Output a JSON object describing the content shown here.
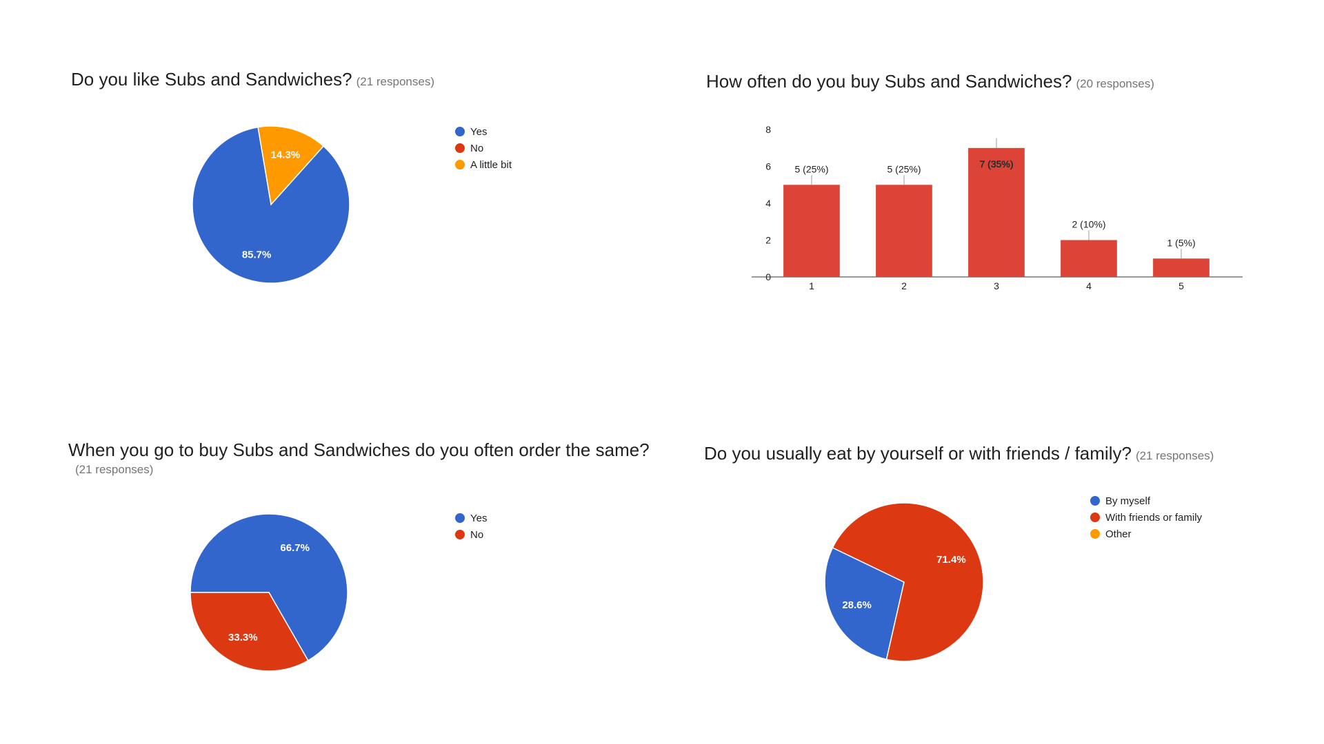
{
  "colors": {
    "blue": "#3366cc",
    "red": "#dc3912",
    "orange": "#ff9900",
    "bar": "#db4437"
  },
  "chart_data": [
    {
      "type": "pie",
      "title": "Do you like Subs and Sandwiches?",
      "responses": "(21 responses)",
      "slices": [
        {
          "label": "Yes",
          "value": 85.7,
          "display": "85.7%",
          "color": "#3366cc"
        },
        {
          "label": "No",
          "value": 0,
          "display": "",
          "color": "#dc3912"
        },
        {
          "label": "A little bit",
          "value": 14.3,
          "display": "14.3%",
          "color": "#ff9900"
        }
      ]
    },
    {
      "type": "bar",
      "title": "How often do you buy Subs and Sandwiches?",
      "responses": "(20 responses)",
      "categories": [
        "1",
        "2",
        "3",
        "4",
        "5"
      ],
      "values": [
        5,
        5,
        7,
        2,
        1
      ],
      "labels": [
        "5 (25%)",
        "5 (25%)",
        "7 (35%)",
        "2 (10%)",
        "1 (5%)"
      ],
      "yticks": [
        0,
        2,
        4,
        6,
        8
      ],
      "ylim": [
        0,
        8
      ],
      "color": "#db4437"
    },
    {
      "type": "pie",
      "title": "When you go to buy Subs and Sandwiches do you often order the same?",
      "responses": "(21 responses)",
      "slices": [
        {
          "label": "Yes",
          "value": 66.7,
          "display": "66.7%",
          "color": "#3366cc"
        },
        {
          "label": "No",
          "value": 33.3,
          "display": "33.3%",
          "color": "#dc3912"
        }
      ]
    },
    {
      "type": "pie",
      "title": "Do you usually eat by yourself or with friends / family?",
      "responses": "(21 responses)",
      "slices": [
        {
          "label": "By myself",
          "value": 28.6,
          "display": "28.6%",
          "color": "#3366cc"
        },
        {
          "label": "With friends or family",
          "value": 71.4,
          "display": "71.4%",
          "color": "#dc3912"
        },
        {
          "label": "Other",
          "value": 0,
          "display": "",
          "color": "#ff9900"
        }
      ]
    }
  ]
}
